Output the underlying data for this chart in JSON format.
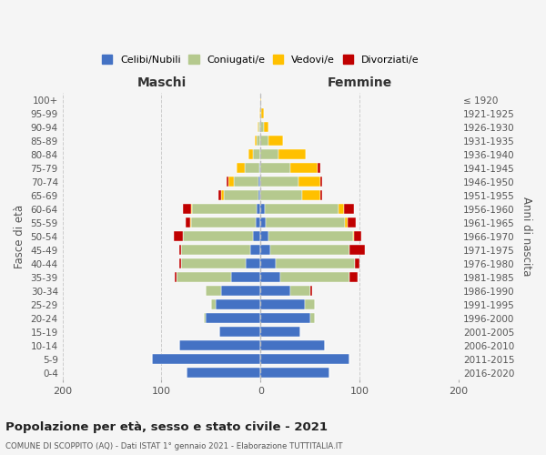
{
  "age_groups": [
    "0-4",
    "5-9",
    "10-14",
    "15-19",
    "20-24",
    "25-29",
    "30-34",
    "35-39",
    "40-44",
    "45-49",
    "50-54",
    "55-59",
    "60-64",
    "65-69",
    "70-74",
    "75-79",
    "80-84",
    "85-89",
    "90-94",
    "95-99",
    "100+"
  ],
  "birth_years": [
    "2016-2020",
    "2011-2015",
    "2006-2010",
    "2001-2005",
    "1996-2000",
    "1991-1995",
    "1986-1990",
    "1981-1985",
    "1976-1980",
    "1971-1975",
    "1966-1970",
    "1961-1965",
    "1956-1960",
    "1951-1955",
    "1946-1950",
    "1941-1945",
    "1936-1940",
    "1931-1935",
    "1926-1930",
    "1921-1925",
    "≤ 1920"
  ],
  "colors": {
    "celibi": "#4472c4",
    "coniugati": "#b5c98e",
    "vedovi": "#ffc000",
    "divorziati": "#c00000"
  },
  "maschi": {
    "celibi": [
      75,
      110,
      82,
      42,
      55,
      45,
      40,
      30,
      15,
      10,
      8,
      5,
      4,
      2,
      2,
      1,
      0,
      0,
      0,
      0,
      0
    ],
    "coniugati": [
      0,
      0,
      0,
      0,
      2,
      5,
      15,
      55,
      65,
      70,
      70,
      65,
      65,
      35,
      25,
      15,
      8,
      4,
      2,
      0,
      0
    ],
    "vedovi": [
      0,
      0,
      0,
      0,
      0,
      0,
      0,
      0,
      0,
      0,
      0,
      1,
      1,
      3,
      5,
      8,
      4,
      2,
      1,
      1,
      0
    ],
    "divorziati": [
      0,
      0,
      0,
      0,
      0,
      0,
      0,
      2,
      2,
      2,
      10,
      5,
      8,
      3,
      2,
      0,
      0,
      0,
      0,
      0,
      0
    ]
  },
  "femmine": {
    "celibi": [
      70,
      90,
      65,
      40,
      50,
      45,
      30,
      20,
      15,
      10,
      8,
      5,
      4,
      0,
      0,
      0,
      0,
      0,
      0,
      0,
      0
    ],
    "coniugati": [
      0,
      0,
      0,
      0,
      5,
      10,
      20,
      70,
      80,
      80,
      85,
      80,
      75,
      42,
      38,
      30,
      18,
      8,
      3,
      1,
      0
    ],
    "vedovi": [
      0,
      0,
      0,
      0,
      0,
      0,
      0,
      0,
      0,
      0,
      1,
      3,
      5,
      18,
      22,
      28,
      28,
      15,
      5,
      2,
      1
    ],
    "divorziati": [
      0,
      0,
      0,
      0,
      0,
      0,
      2,
      8,
      5,
      15,
      8,
      8,
      10,
      2,
      2,
      2,
      0,
      0,
      0,
      0,
      0
    ]
  },
  "title": "Popolazione per età, sesso e stato civile - 2021",
  "subtitle": "COMUNE DI SCOPPITO (AQ) - Dati ISTAT 1° gennaio 2021 - Elaborazione TUTTITALIA.IT",
  "xlabel_left": "Maschi",
  "xlabel_right": "Femmine",
  "ylabel_left": "Fasce di età",
  "ylabel_right": "Anni di nascita",
  "xlim": 200,
  "legend_labels": [
    "Celibi/Nubili",
    "Coniugati/e",
    "Vedovi/e",
    "Divorziati/e"
  ],
  "bg_color": "#f5f5f5",
  "grid_color": "#cccccc"
}
